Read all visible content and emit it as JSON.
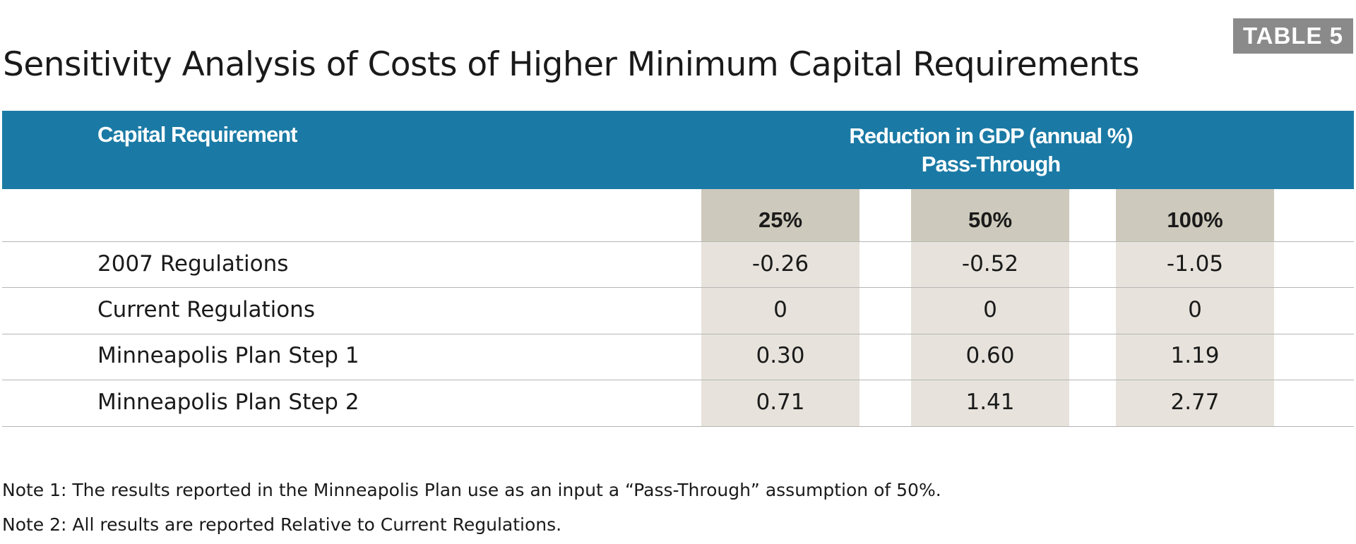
{
  "badge": "TABLE 5",
  "chart_data": {
    "type": "table",
    "title": "Sensitivity Analysis of Costs of Higher Minimum Capital Requirements",
    "row_header": "Capital Requirement",
    "column_group_header_line1": "Reduction in GDP  (annual %)",
    "column_group_header_line2": "Pass-Through",
    "columns": [
      "25%",
      "50%",
      "100%"
    ],
    "rows": [
      {
        "label": "2007 Regulations",
        "values": [
          "-0.26",
          "-0.52",
          "-1.05"
        ]
      },
      {
        "label": "Current Regulations",
        "values": [
          "0",
          "0",
          "0"
        ]
      },
      {
        "label": "Minneapolis Plan Step 1",
        "values": [
          "0.30",
          "0.60",
          "1.19"
        ]
      },
      {
        "label": "Minneapolis Plan Step 2",
        "values": [
          "0.71",
          "1.41",
          "2.77"
        ]
      }
    ]
  },
  "notes": [
    "Note 1: The results reported in the Minneapolis Plan use as an input a “Pass-Through” assumption of 50%.",
    "Note 2: All results are reported Relative to Current Regulations."
  ],
  "colors": {
    "header_band": "#1a7aa5",
    "column_shade": "#e7e3dc",
    "column_head_shade": "#cdc9bc",
    "badge": "#8a8a8a"
  }
}
